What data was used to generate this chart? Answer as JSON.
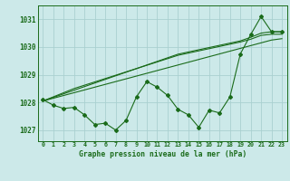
{
  "title": "Graphe pression niveau de la mer (hPa)",
  "bg_color": "#cce9e9",
  "grid_color": "#aad0d0",
  "line_color": "#1a6b1a",
  "x_labels": [
    "0",
    "1",
    "2",
    "3",
    "4",
    "5",
    "6",
    "7",
    "8",
    "9",
    "10",
    "11",
    "12",
    "13",
    "14",
    "15",
    "16",
    "17",
    "18",
    "19",
    "20",
    "21",
    "22",
    "23"
  ],
  "x_values": [
    0,
    1,
    2,
    3,
    4,
    5,
    6,
    7,
    8,
    9,
    10,
    11,
    12,
    13,
    14,
    15,
    16,
    17,
    18,
    19,
    20,
    21,
    22,
    23
  ],
  "main_data": [
    1028.1,
    1027.9,
    1027.78,
    1027.82,
    1027.55,
    1027.2,
    1027.25,
    1027.0,
    1027.35,
    1028.2,
    1028.75,
    1028.55,
    1028.25,
    1027.75,
    1027.55,
    1027.1,
    1027.72,
    1027.62,
    1028.2,
    1029.75,
    1030.45,
    1031.1,
    1030.55,
    1030.55
  ],
  "trend_line1": [
    1028.05,
    1028.18,
    1028.31,
    1028.44,
    1028.57,
    1028.7,
    1028.83,
    1028.96,
    1029.09,
    1029.22,
    1029.35,
    1029.48,
    1029.61,
    1029.74,
    1029.82,
    1029.9,
    1029.98,
    1030.06,
    1030.14,
    1030.22,
    1030.35,
    1030.5,
    1030.55,
    1030.55
  ],
  "trend_line2": [
    1028.05,
    1028.15,
    1028.25,
    1028.35,
    1028.45,
    1028.55,
    1028.65,
    1028.75,
    1028.85,
    1028.95,
    1029.05,
    1029.15,
    1029.25,
    1029.35,
    1029.45,
    1029.55,
    1029.65,
    1029.75,
    1029.85,
    1029.95,
    1030.05,
    1030.15,
    1030.25,
    1030.3
  ],
  "trend_line3": [
    1028.05,
    1028.2,
    1028.35,
    1028.5,
    1028.62,
    1028.74,
    1028.86,
    1028.98,
    1029.1,
    1029.22,
    1029.34,
    1029.46,
    1029.58,
    1029.7,
    1029.78,
    1029.86,
    1029.94,
    1030.02,
    1030.1,
    1030.18,
    1030.28,
    1030.42,
    1030.46,
    1030.46
  ],
  "ylim": [
    1026.6,
    1031.5
  ],
  "yticks": [
    1027,
    1028,
    1029,
    1030,
    1031
  ]
}
